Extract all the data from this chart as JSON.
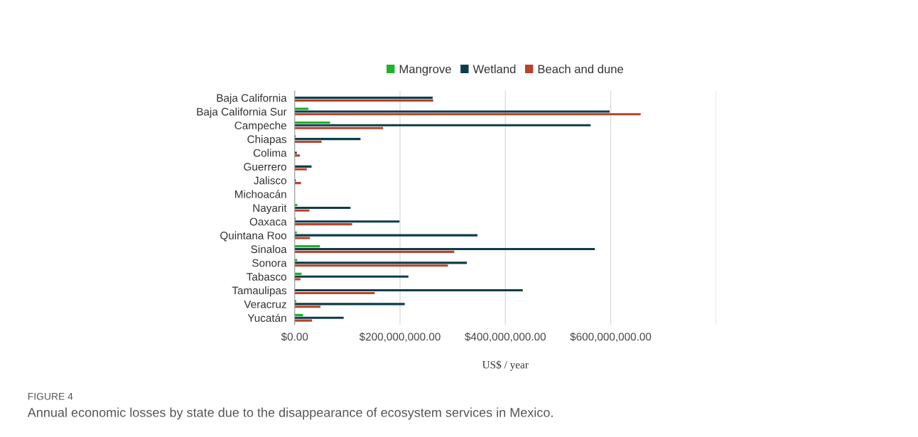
{
  "chart_data": {
    "type": "bar",
    "orientation": "horizontal",
    "categories": [
      "Baja California",
      "Baja California Sur",
      "Campeche",
      "Chiapas",
      "Colima",
      "Guerrero",
      "Jalisco",
      "Michoacán",
      "Nayarit",
      "Oaxaca",
      "Quintana Roo",
      "Sinaloa",
      "Sonora",
      "Tabasco",
      "Tamaulipas",
      "Veracruz",
      "Yucatán"
    ],
    "series": [
      {
        "name": "Mangrove",
        "color": "#22b02a",
        "values": [
          null,
          26000000,
          67000000,
          2000000,
          0,
          0,
          0,
          0,
          5000000,
          2000000,
          4000000,
          48000000,
          5000000,
          13000000,
          0,
          3000000,
          16000000
        ]
      },
      {
        "name": "Wetland",
        "color": "#0d3d4a",
        "values": [
          262000000,
          598000000,
          562000000,
          125000000,
          4000000,
          32000000,
          2000000,
          null,
          106000000,
          199000000,
          347000000,
          570000000,
          327000000,
          216000000,
          433000000,
          209000000,
          93000000
        ]
      },
      {
        "name": "Beach and dune",
        "color": "#b8432a",
        "values": [
          263000000,
          657000000,
          168000000,
          51000000,
          10000000,
          23000000,
          12000000,
          null,
          28000000,
          109000000,
          29000000,
          303000000,
          291000000,
          11000000,
          152000000,
          49000000,
          33000000
        ]
      }
    ],
    "xlim": [
      0,
      800000000
    ],
    "xticks": [
      {
        "value": 0,
        "label": "$0.00"
      },
      {
        "value": 200000000,
        "label": "$200,000,000.00"
      },
      {
        "value": 400000000,
        "label": "$400,000,000.00"
      },
      {
        "value": 600000000,
        "label": "$600,000,000.00"
      },
      {
        "value": 800000000,
        "label": null
      }
    ],
    "xlabel": "US$ / year",
    "grid": "x",
    "legend": "top",
    "annotations": [
      "FIGURE 4",
      "Annual economic losses by state due to the disappearance of ecosystem services in Mexico."
    ]
  }
}
